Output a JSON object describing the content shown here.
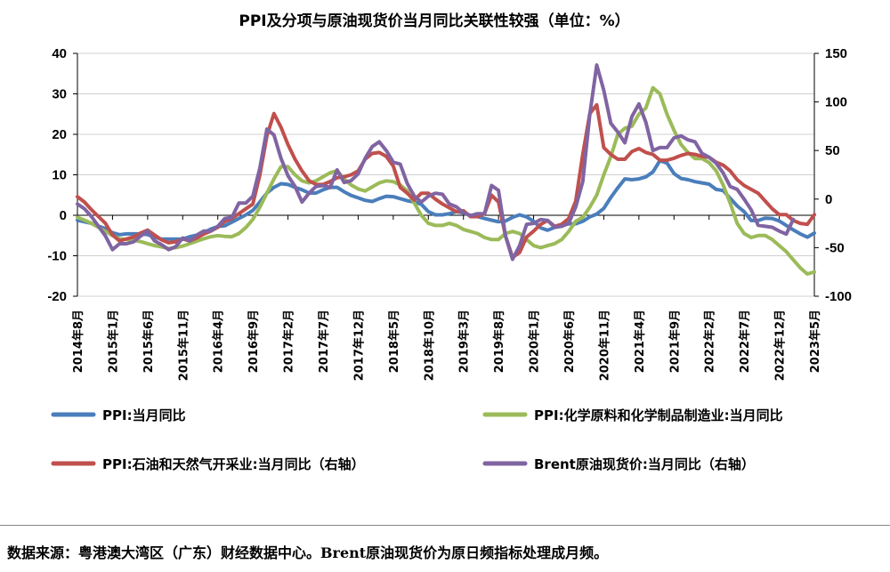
{
  "chart_data": {
    "type": "line",
    "title": "PPI及分项与原油现货价当月同比关联性较强（单位：%）",
    "ylim_left": [
      -20,
      40
    ],
    "ylim_right": [
      -100,
      150
    ],
    "yticks_left": [
      "40",
      "30",
      "20",
      "10",
      "0",
      "-10",
      "-20"
    ],
    "yticks_right": [
      "150",
      "100",
      "50",
      "0",
      "-50",
      "-100"
    ],
    "x_tick_labels": [
      "2014年8月",
      "2015年1月",
      "2015年6月",
      "2015年11月",
      "2016年4月",
      "2016年9月",
      "2017年2月",
      "2017年7月",
      "2017年12月",
      "2018年5月",
      "2018年10月",
      "2019年3月",
      "2019年8月",
      "2020年1月",
      "2020年6月",
      "2020年11月",
      "2021年4月",
      "2021年9月",
      "2022年2月",
      "2022年7月",
      "2022年12月",
      "2023年5月"
    ],
    "legend_position": "bottom",
    "series": [
      {
        "name": "PPI:当月同比",
        "axis": "left",
        "color": "#4a7ebb",
        "values": [
          -1.2,
          -1.6,
          -2.0,
          -2.7,
          -3.3,
          -4.3,
          -4.8,
          -4.6,
          -4.6,
          -4.6,
          -4.8,
          -5.4,
          -5.9,
          -5.9,
          -5.9,
          -5.9,
          -5.3,
          -4.9,
          -4.3,
          -3.4,
          -2.8,
          -2.6,
          -1.7,
          -0.8,
          0.1,
          1.2,
          3.3,
          5.5,
          6.9,
          7.8,
          7.6,
          6.9,
          6.3,
          5.5,
          5.5,
          6.3,
          6.9,
          6.9,
          5.8,
          4.9,
          4.3,
          3.7,
          3.4,
          4.1,
          4.7,
          4.6,
          4.1,
          3.6,
          3.3,
          2.7,
          0.9,
          0.1,
          0.1,
          0.4,
          0.9,
          0.6,
          0.0,
          -0.3,
          -0.8,
          -1.2,
          -1.6,
          -1.4,
          -0.5,
          0.1,
          -0.4,
          -1.5,
          -3.1,
          -3.7,
          -3.0,
          -2.4,
          -2.1,
          -2.1,
          -1.5,
          -0.4,
          0.3,
          1.7,
          4.4,
          6.8,
          9.0,
          8.8,
          9.0,
          9.5,
          10.7,
          13.5,
          12.9,
          10.3,
          9.1,
          8.8,
          8.3,
          8.0,
          7.7,
          6.4,
          6.1,
          4.2,
          2.3,
          0.9,
          -1.3,
          -1.3,
          -0.7,
          -0.8,
          -1.4,
          -2.5,
          -3.6,
          -4.6,
          -5.4,
          -4.4
        ]
      },
      {
        "name": "PPI:化学原料和化学制品制造业:当月同比",
        "axis": "left",
        "color": "#9bbb59",
        "values": [
          -0.5,
          -1.2,
          -2.0,
          -3.0,
          -4.0,
          -5.0,
          -5.8,
          -6.0,
          -6.2,
          -6.5,
          -7.0,
          -7.5,
          -7.8,
          -8.2,
          -8.0,
          -7.6,
          -7.0,
          -6.4,
          -5.8,
          -5.3,
          -5.0,
          -5.2,
          -5.3,
          -4.5,
          -3.0,
          -1.0,
          2.0,
          5.5,
          9.0,
          12.0,
          12.0,
          10.0,
          8.5,
          8.0,
          8.5,
          9.5,
          10.5,
          11.0,
          9.0,
          7.5,
          6.5,
          6.0,
          7.0,
          8.0,
          8.5,
          8.3,
          7.5,
          6.0,
          3.0,
          0.0,
          -2.0,
          -2.5,
          -2.5,
          -2.0,
          -2.5,
          -3.5,
          -4.0,
          -4.5,
          -5.5,
          -6.0,
          -6.0,
          -4.5,
          -4.0,
          -4.5,
          -6.0,
          -7.5,
          -8.0,
          -7.5,
          -7.0,
          -6.0,
          -4.0,
          -1.5,
          -0.5,
          2.0,
          5.0,
          10.0,
          14.5,
          20.0,
          21.5,
          22.0,
          25.0,
          26.5,
          31.5,
          30.0,
          25.0,
          21.0,
          17.5,
          15.5,
          14.0,
          14.0,
          13.0,
          11.0,
          7.5,
          3.0,
          -2.0,
          -4.5,
          -5.5,
          -5.0,
          -5.0,
          -6.0,
          -7.5,
          -9.0,
          -11.0,
          -13.0,
          -14.5,
          -14.0
        ]
      },
      {
        "name": "PPI:石油和天然气开采业:当月同比（右轴）",
        "axis": "right",
        "color": "#c0504d",
        "values": [
          2.5,
          -3,
          -11,
          -18,
          -25,
          -37,
          -43,
          -41,
          -39,
          -35,
          -32,
          -37,
          -42,
          -45,
          -44,
          -41,
          -43,
          -40,
          -36,
          -33,
          -29,
          -23,
          -20,
          -15,
          -10,
          -5,
          25,
          65,
          88,
          74,
          56,
          41,
          29,
          19,
          15,
          15,
          18,
          22,
          23,
          25,
          29,
          41,
          47,
          48,
          44,
          34,
          12,
          6,
          -1,
          6,
          6,
          0,
          -5,
          -9,
          -13,
          -12,
          -18,
          -18,
          -15,
          4,
          -3,
          -38,
          -60,
          -55,
          -39,
          -33,
          -26,
          -22,
          -28,
          -26,
          -20,
          -2,
          46,
          88,
          97,
          53,
          46,
          41,
          41,
          49,
          52,
          48,
          46,
          40,
          40,
          42,
          45,
          47,
          46,
          44,
          43,
          38,
          35,
          29,
          20,
          14,
          10,
          6,
          -2,
          -10,
          -16,
          -16,
          -22,
          -25,
          -26,
          -16
        ]
      },
      {
        "name": "Brent原油现货价:当月同比（右轴）",
        "axis": "right",
        "color": "#8064a2",
        "values": [
          -5,
          -10,
          -18,
          -28,
          -38,
          -52,
          -46,
          -46,
          -44,
          -38,
          -33,
          -43,
          -47,
          -52,
          -49,
          -40,
          -43,
          -37,
          -33,
          -33,
          -28,
          -20,
          -19,
          -4,
          -4,
          3,
          32,
          72,
          66,
          42,
          24,
          13,
          -3,
          6,
          13,
          14,
          12,
          30,
          17,
          19,
          26,
          42,
          54,
          59,
          50,
          38,
          36,
          16,
          3,
          -3,
          3,
          6,
          5,
          -5,
          -8,
          -14,
          -17,
          -15,
          -15,
          14,
          9,
          -38,
          -62,
          -48,
          -26,
          -25,
          -21,
          -22,
          -29,
          -28,
          -25,
          -8,
          18,
          87,
          138,
          112,
          78,
          69,
          58,
          85,
          98,
          79,
          50,
          53,
          53,
          63,
          65,
          61,
          59,
          47,
          43,
          37,
          27,
          13,
          10,
          0,
          -11,
          -27,
          -28,
          -29,
          -33,
          -36,
          -21
        ]
      }
    ]
  },
  "footer": {
    "source_text": "数据来源：粤港澳大湾区（广东）财经数据中心。Brent原油现货价为原日频指标处理成月频。"
  }
}
